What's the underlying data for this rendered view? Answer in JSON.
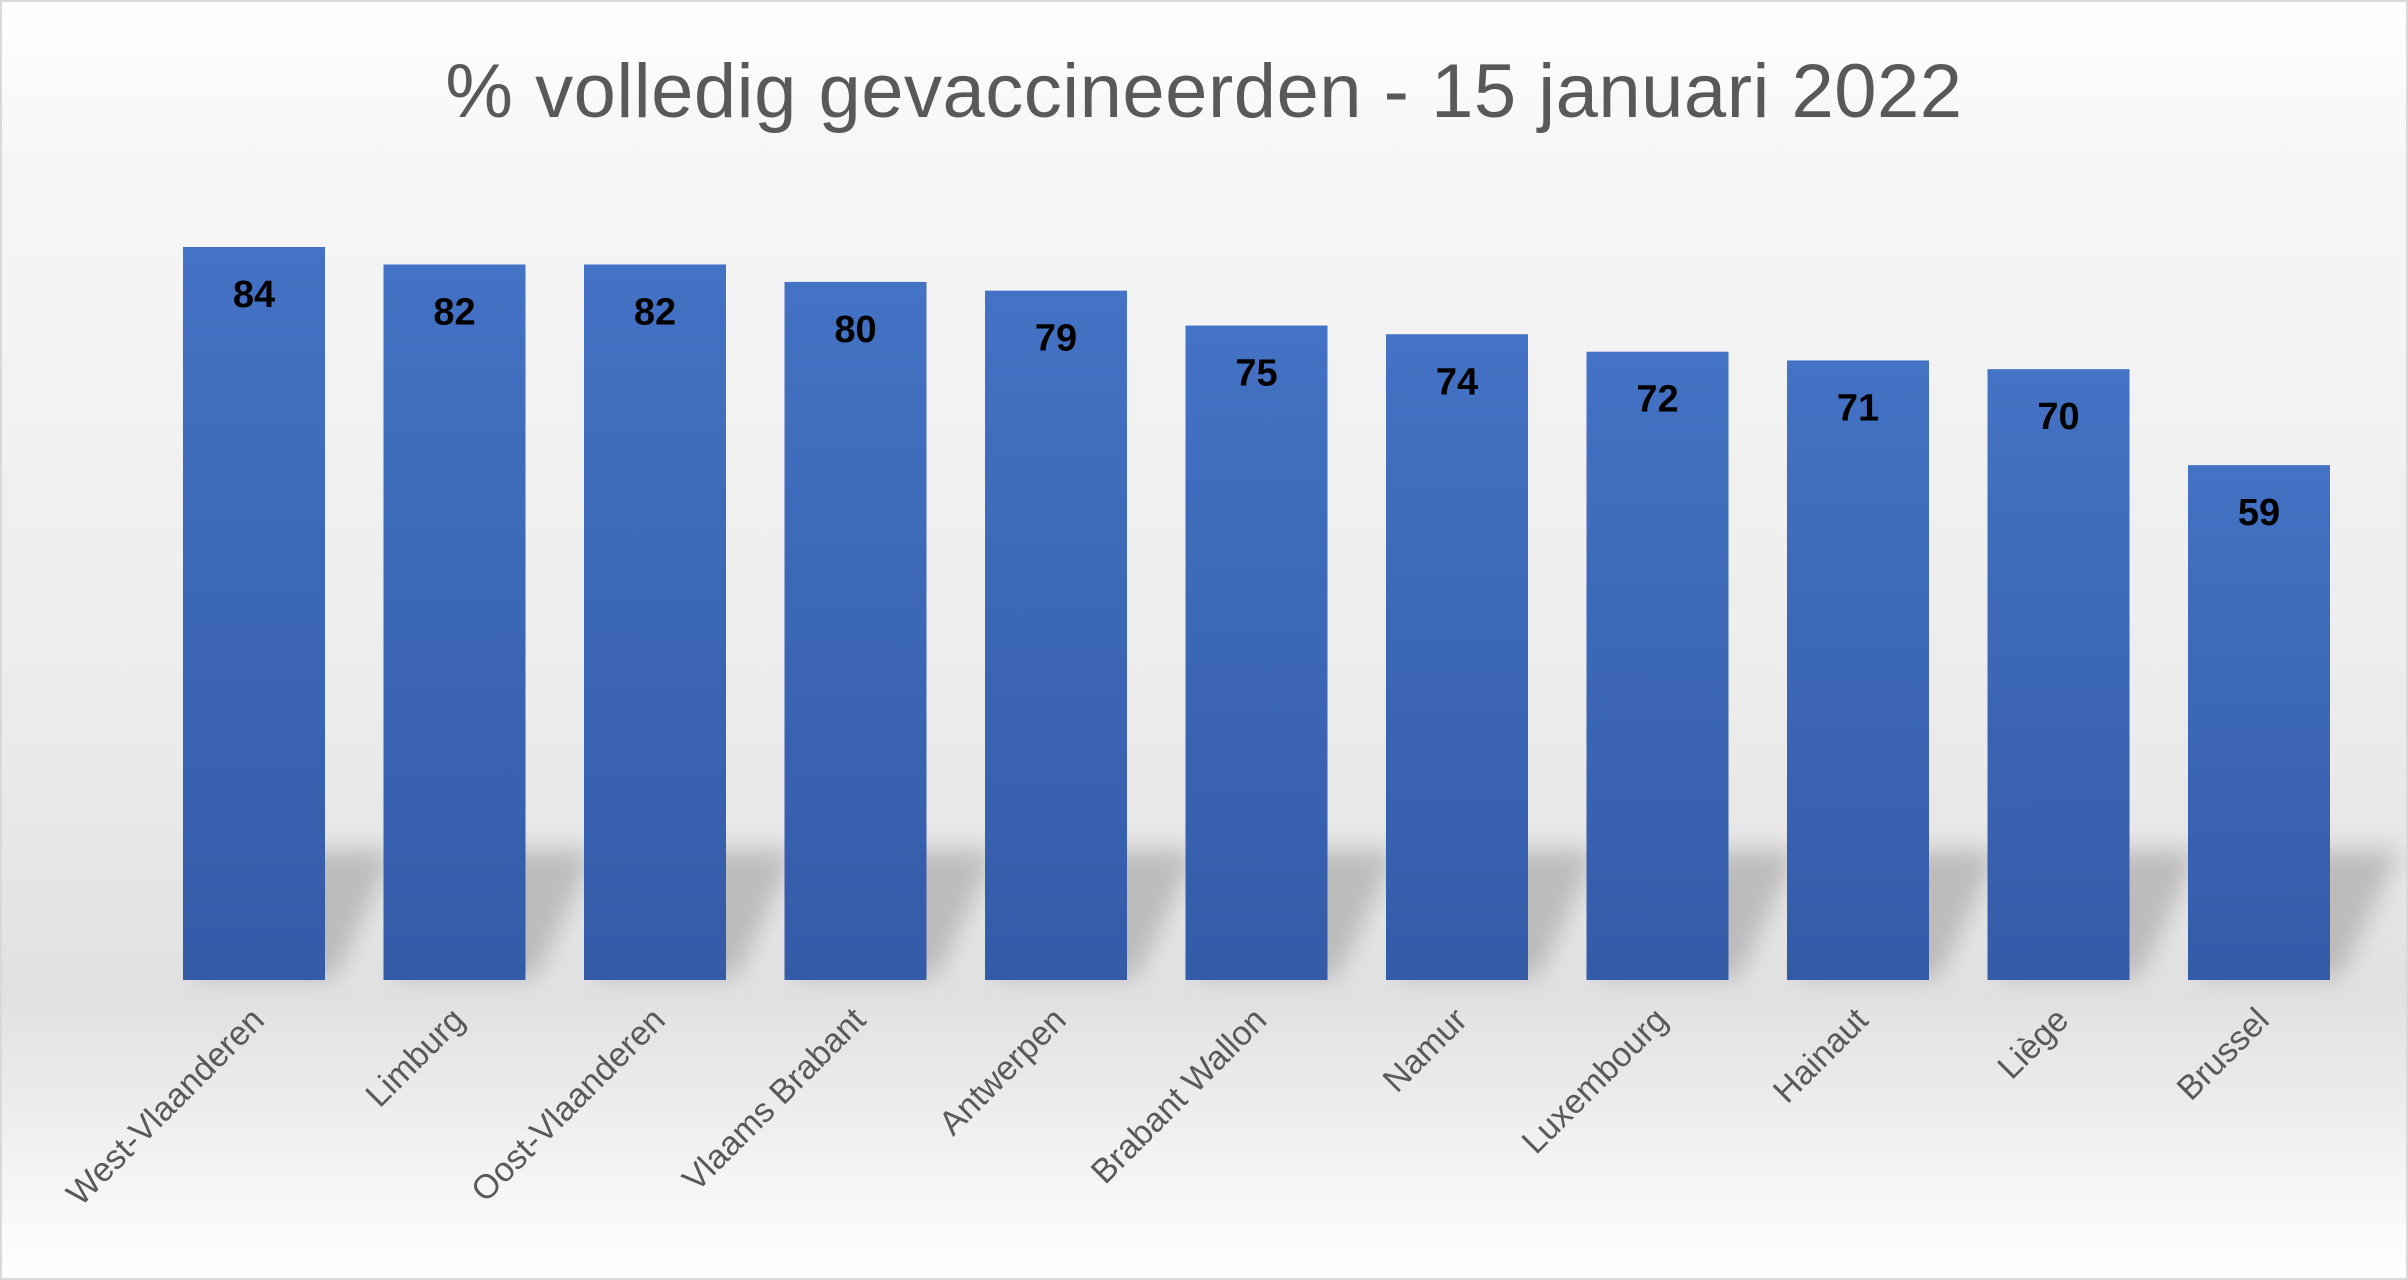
{
  "chart_data": {
    "type": "bar",
    "title": "% volledig gevaccineerden - 15 januari 2022",
    "xlabel": "",
    "ylabel": "",
    "categories": [
      "West-Vlaanderen",
      "Limburg",
      "Oost-Vlaanderen",
      "Vlaams Brabant",
      "Antwerpen",
      "Brabant Wallon",
      "Namur",
      "Luxembourg",
      "Hainaut",
      "Liège",
      "Brussel"
    ],
    "values": [
      84,
      82,
      82,
      80,
      79,
      75,
      74,
      72,
      71,
      70,
      59
    ],
    "data_labels": [
      "84",
      "82",
      "82",
      "80",
      "79",
      "75",
      "74",
      "72",
      "71",
      "70",
      "59"
    ],
    "ylim": [
      0,
      84
    ],
    "grid": false,
    "legend": "none",
    "colors": {
      "bar_top": "#4472c4",
      "bar_bottom": "#345ba8",
      "title": "#595959",
      "tick_label": "#595959",
      "data_label": "#000000"
    }
  }
}
